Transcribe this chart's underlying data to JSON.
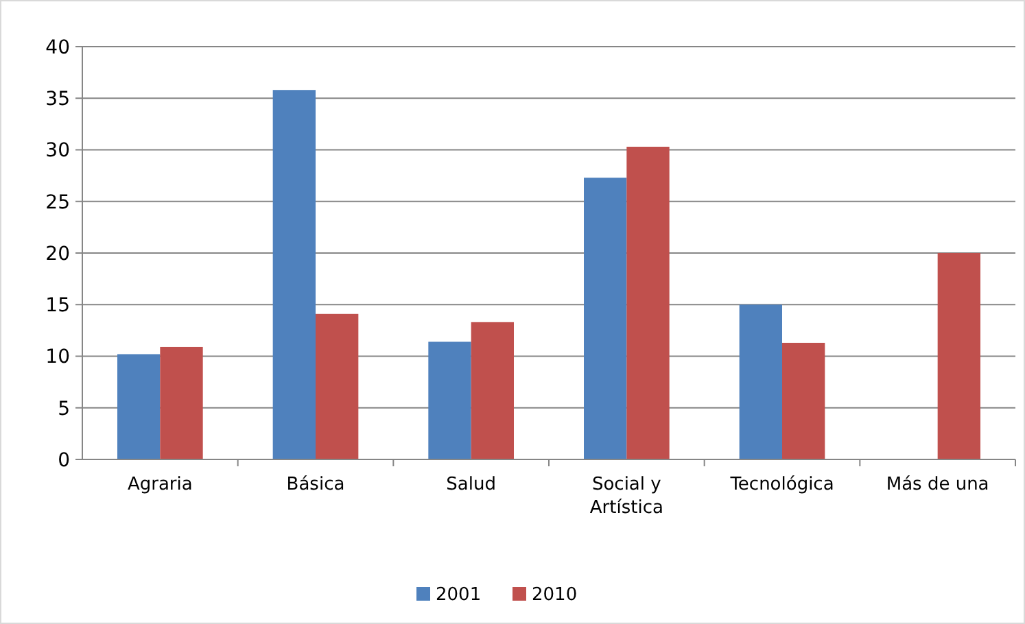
{
  "chart_data": {
    "type": "bar",
    "categories": [
      "Agraria",
      "Básica",
      "Salud",
      "Social y Artística",
      "Tecnológica",
      "Más de una"
    ],
    "series": [
      {
        "name": "2001",
        "color": "#4f81bd",
        "values": [
          10.2,
          35.8,
          11.4,
          27.3,
          15.0,
          null
        ]
      },
      {
        "name": "2010",
        "color": "#c0504d",
        "values": [
          10.9,
          14.1,
          13.3,
          30.3,
          11.3,
          20.0
        ]
      }
    ],
    "ylim": [
      0,
      40
    ],
    "yticks": [
      0,
      5,
      10,
      15,
      20,
      25,
      30,
      35,
      40
    ],
    "grid": "y",
    "legend": "bottom"
  }
}
